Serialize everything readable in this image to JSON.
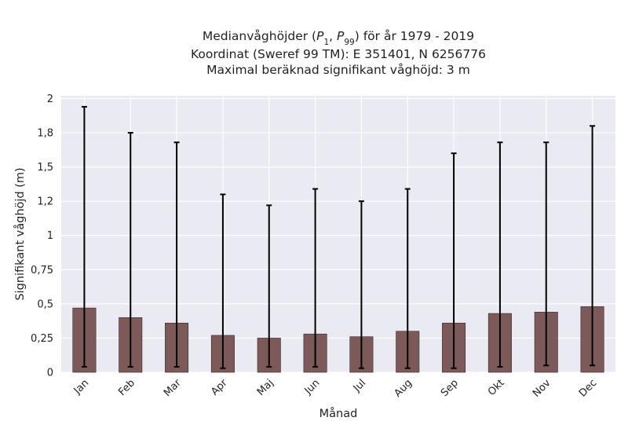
{
  "chart_data": {
    "type": "bar",
    "title_lines": [
      "Medianvåghöjder (P1, P99) för år 1979 - 2019",
      "Koordinat (Sweref 99 TM): E 351401, N 6256776",
      "Maximal beräknad signifikant våghöjd: 3 m"
    ],
    "xlabel": "Månad",
    "ylabel": "Signifikant våghöjd (m)",
    "categories": [
      "Jan",
      "Feb",
      "Mar",
      "Apr",
      "Maj",
      "Jun",
      "Jul",
      "Aug",
      "Sep",
      "Okt",
      "Nov",
      "Dec"
    ],
    "series": [
      {
        "values": [
          0.47,
          0.4,
          0.36,
          0.27,
          0.25,
          0.28,
          0.26,
          0.3,
          0.36,
          0.43,
          0.44,
          0.48
        ],
        "error_low": [
          0.04,
          0.04,
          0.04,
          0.03,
          0.04,
          0.04,
          0.03,
          0.03,
          0.03,
          0.04,
          0.05,
          0.05
        ],
        "error_high": [
          1.94,
          1.75,
          1.68,
          1.3,
          1.22,
          1.34,
          1.25,
          1.34,
          1.6,
          1.68,
          1.68,
          1.8
        ]
      }
    ],
    "yticks": [
      0,
      0.25,
      0.5,
      0.75,
      1,
      1.25,
      1.5,
      1.75,
      2
    ],
    "ytick_labels": [
      "0",
      "0,25",
      "0,5",
      "0,75",
      "1",
      "1,2",
      "1,5",
      "1,8",
      "2"
    ],
    "ylim": [
      0,
      2.02
    ],
    "grid": true,
    "colors": {
      "bar": "#7d5a5a",
      "error": "#000000",
      "background": "#eaeaf2"
    }
  }
}
